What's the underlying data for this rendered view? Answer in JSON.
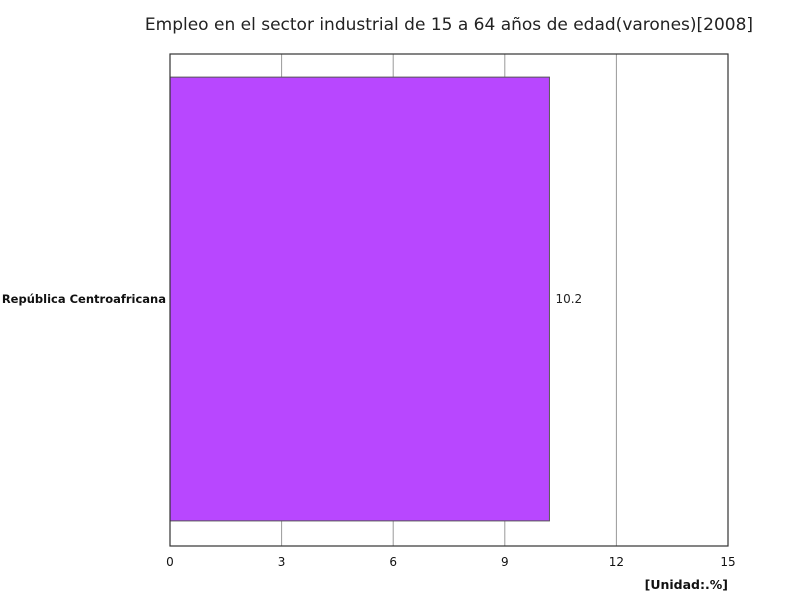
{
  "chart_data": {
    "type": "bar",
    "orientation": "horizontal",
    "title": "Empleo en el sector industrial de 15 a 64 años de edad(varones)[2008]",
    "categories": [
      "República Centroafricana"
    ],
    "values": [
      10.2
    ],
    "value_labels": [
      "10.2"
    ],
    "xlim": [
      0,
      15
    ],
    "x_ticks": [
      0,
      3,
      6,
      9,
      12,
      15
    ],
    "x_tick_labels": [
      "0",
      "3",
      "6",
      "9",
      "12",
      "15"
    ],
    "unit_label": "[Unidad:.%]",
    "grid": "vertical",
    "bar_color": "#b847ff",
    "bar_border_color": "#555555",
    "grid_color": "#999999",
    "frame_color": "#333333"
  }
}
